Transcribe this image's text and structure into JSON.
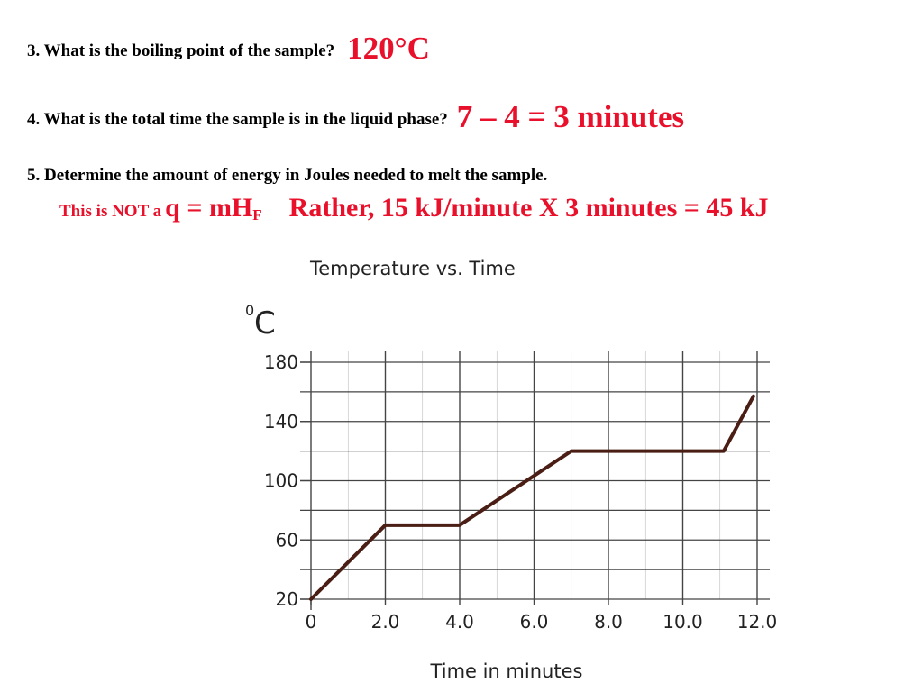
{
  "questions": {
    "q3": {
      "text": "3.  What is the boiling point of the sample?",
      "answer": "120°C"
    },
    "q4": {
      "text": "4.  What is the total time the sample is in the liquid phase?",
      "answer": "7 – 4 = 3 minutes"
    },
    "q5": {
      "text": "5.   Determine the amount of energy in Joules needed to melt the sample."
    }
  },
  "note": {
    "prefix": "This is NOT a",
    "formula_main": "q = mH",
    "formula_sub": "F",
    "rather": "Rather, 15 kJ/minute X 3 minutes = 45 kJ"
  },
  "colors": {
    "answer": "#e8102a",
    "line": "#4a1e14",
    "grid": "#444444"
  },
  "chart_data": {
    "type": "line",
    "title": "Temperature vs. Time",
    "xlabel": "Time in minutes",
    "ylabel_sup": "0",
    "ylabel": "C",
    "xlim": [
      0,
      12
    ],
    "ylim": [
      20,
      180
    ],
    "x_ticks": [
      0,
      2,
      4,
      6,
      8,
      10,
      12
    ],
    "x_tick_labels": [
      "0",
      "2.0",
      "4.0",
      "6.0",
      "8.0",
      "10.0",
      "12.0"
    ],
    "y_ticks": [
      20,
      60,
      100,
      140,
      180
    ],
    "y_tick_labels": [
      "20",
      "60",
      "100",
      "140",
      "180"
    ],
    "grid": true,
    "series": [
      {
        "x": [
          0,
          2,
          4,
          7,
          11.1,
          11.9
        ],
        "y": [
          20,
          70,
          70,
          120,
          120,
          157
        ]
      }
    ]
  }
}
